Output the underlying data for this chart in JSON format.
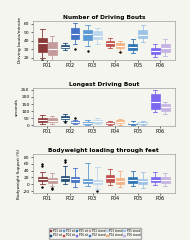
{
  "title1": "Number of Driving Bouts",
  "title2": "Longest Driving Bout",
  "title3": "Bodyweight loading through feet",
  "ylabel1": "Driving bouts/minute",
  "ylabel2": "seconds",
  "ylabel3": "Bodyweight Support (%)",
  "participants": [
    "P01",
    "P02",
    "P03",
    "P04",
    "P05",
    "P06"
  ],
  "colors_sit": [
    "#8B3A3A",
    "#1F4E79",
    "#5B9BD5",
    "#C0504D",
    "#2E75B6",
    "#7B68EE"
  ],
  "colors_stand": [
    "#C49A9A",
    "#4472C4",
    "#BDD7EE",
    "#F4B183",
    "#9DC3E6",
    "#C5B4E3"
  ],
  "bg_color": "#F5F5F0",
  "plot1_sit": {
    "P01": {
      "med": 37,
      "q1": 27,
      "q3": 43,
      "whislo": 20,
      "whishi": 54,
      "fliers": [
        17
      ]
    },
    "P02": {
      "med": 33,
      "q1": 31,
      "q3": 35,
      "whislo": 29,
      "whishi": 37,
      "fliers": []
    },
    "P03": {
      "med": 48,
      "q1": 41,
      "q3": 53,
      "whislo": 34,
      "whishi": 59,
      "fliers": [
        28
      ]
    },
    "P04": {
      "med": 37,
      "q1": 34,
      "q3": 40,
      "whislo": 31,
      "whishi": 43,
      "fliers": []
    },
    "P05": {
      "med": 33,
      "q1": 29,
      "q3": 36,
      "whislo": 26,
      "whishi": 42,
      "fliers": []
    },
    "P06": {
      "med": 28,
      "q1": 24,
      "q3": 31,
      "whislo": 21,
      "whishi": 36,
      "fliers": []
    }
  },
  "plot1_stand": {
    "P01": {
      "med": 30,
      "q1": 23,
      "q3": 39,
      "whislo": 17,
      "whishi": 46,
      "fliers": [
        15
      ]
    },
    "P02": {
      "med": 48,
      "q1": 42,
      "q3": 55,
      "whislo": 36,
      "whishi": 61,
      "fliers": [
        30
      ]
    },
    "P03": {
      "med": 46,
      "q1": 42,
      "q3": 51,
      "whislo": 36,
      "whishi": 55,
      "fliers": []
    },
    "P04": {
      "med": 34,
      "q1": 31,
      "q3": 37,
      "whislo": 27,
      "whishi": 40,
      "fliers": [
        27
      ]
    },
    "P05": {
      "med": 47,
      "q1": 43,
      "q3": 52,
      "whislo": 38,
      "whishi": 58,
      "fliers": []
    },
    "P06": {
      "med": 31,
      "q1": 27,
      "q3": 36,
      "whislo": 22,
      "whishi": 42,
      "fliers": []
    }
  },
  "plot2_sit": {
    "P01": {
      "med": 38,
      "q1": 26,
      "q3": 55,
      "whislo": 12,
      "whishi": 70,
      "fliers": []
    },
    "P02": {
      "med": 55,
      "q1": 42,
      "q3": 68,
      "whislo": 28,
      "whishi": 80,
      "fliers": [
        22
      ]
    },
    "P03": {
      "med": 18,
      "q1": 13,
      "q3": 26,
      "whislo": 6,
      "whishi": 36,
      "fliers": []
    },
    "P04": {
      "med": 16,
      "q1": 12,
      "q3": 24,
      "whislo": 6,
      "whishi": 30,
      "fliers": []
    },
    "P05": {
      "med": 14,
      "q1": 10,
      "q3": 20,
      "whislo": 5,
      "whishi": 28,
      "fliers": []
    },
    "P06": {
      "med": 165,
      "q1": 115,
      "q3": 218,
      "whislo": 95,
      "whishi": 248,
      "fliers": []
    }
  },
  "plot2_stand": {
    "P01": {
      "med": 34,
      "q1": 22,
      "q3": 50,
      "whislo": 8,
      "whishi": 65,
      "fliers": []
    },
    "P02": {
      "med": 22,
      "q1": 16,
      "q3": 30,
      "whislo": 7,
      "whishi": 40,
      "fliers": [
        55
      ]
    },
    "P03": {
      "med": 28,
      "q1": 20,
      "q3": 38,
      "whislo": 10,
      "whishi": 50,
      "fliers": []
    },
    "P04": {
      "med": 26,
      "q1": 16,
      "q3": 36,
      "whislo": 6,
      "whishi": 46,
      "fliers": []
    },
    "P05": {
      "med": 16,
      "q1": 10,
      "q3": 24,
      "whislo": 4,
      "whishi": 33,
      "fliers": []
    },
    "P06": {
      "med": 130,
      "q1": 100,
      "q3": 152,
      "whislo": 78,
      "whishi": 168,
      "fliers": []
    }
  },
  "plot3_sit": {
    "P01": {
      "med": 17,
      "q1": 10,
      "q3": 22,
      "whislo": 0,
      "whishi": 35,
      "fliers": [
        55,
        60,
        -8
      ]
    },
    "P02": {
      "med": 18,
      "q1": 10,
      "q3": 25,
      "whislo": 0,
      "whishi": 55,
      "fliers": [
        65,
        70
      ]
    },
    "P03": {
      "med": 10,
      "q1": 4,
      "q3": 17,
      "whislo": -5,
      "whishi": 62,
      "fliers": []
    },
    "P04": {
      "med": 18,
      "q1": 8,
      "q3": 28,
      "whislo": -2,
      "whishi": 45,
      "fliers": []
    },
    "P05": {
      "med": 12,
      "q1": 5,
      "q3": 20,
      "whislo": -5,
      "whishi": 38,
      "fliers": []
    },
    "P06": {
      "med": 14,
      "q1": 8,
      "q3": 22,
      "whislo": -2,
      "whishi": 36,
      "fliers": []
    }
  },
  "plot3_stand": {
    "P01": {
      "med": 12,
      "q1": 5,
      "q3": 18,
      "whislo": -5,
      "whishi": 32,
      "fliers": [
        -12,
        -15
      ]
    },
    "P02": {
      "med": 15,
      "q1": 8,
      "q3": 22,
      "whislo": -8,
      "whishi": 48,
      "fliers": []
    },
    "P03": {
      "med": 8,
      "q1": 2,
      "q3": 14,
      "whislo": -15,
      "whishi": 52,
      "fliers": [
        -20
      ]
    },
    "P04": {
      "med": 10,
      "q1": 2,
      "q3": 18,
      "whislo": -8,
      "whishi": 38,
      "fliers": []
    },
    "P05": {
      "med": 10,
      "q1": 2,
      "q3": 17,
      "whislo": -12,
      "whishi": 36,
      "fliers": []
    },
    "P06": {
      "med": 12,
      "q1": 5,
      "q3": 20,
      "whislo": -5,
      "whishi": 33,
      "fliers": []
    }
  },
  "plot1_ylim": [
    18,
    63
  ],
  "plot1_yticks": [
    20,
    30,
    40,
    50,
    60
  ],
  "plot2_ylim": [
    -5,
    265
  ],
  "plot2_yticks": [
    0,
    50,
    100,
    150,
    200,
    250
  ],
  "plot3_ylim": [
    -25,
    88
  ],
  "plot3_yticks": [
    -20,
    0,
    20,
    40,
    60,
    80
  ],
  "legend_labels_sit": [
    "P01 sit",
    "P02 sit",
    "P03 sit",
    "P04 sit",
    "P05 sit",
    "P06 sit"
  ],
  "legend_labels_stand": [
    "P01 stand",
    "P02 stand",
    "P03 stand",
    "P04 stand",
    "P05 stand",
    "P06 stand"
  ]
}
